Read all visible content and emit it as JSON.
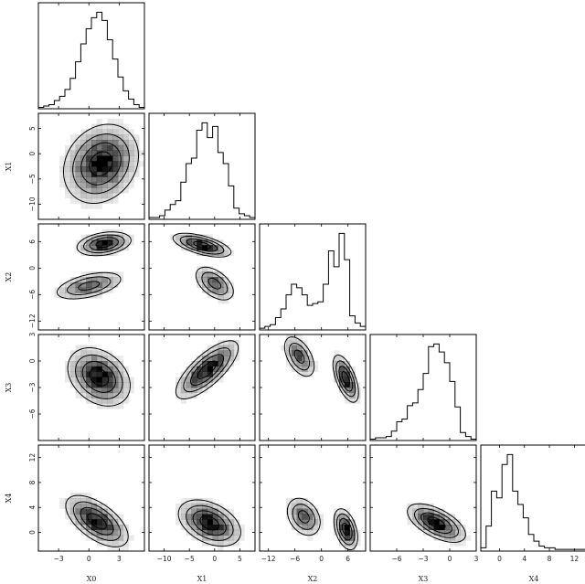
{
  "chart_data": {
    "type": "heatmap",
    "kind": "corner-plot",
    "parameters": [
      "X0",
      "X1",
      "X2",
      "X3",
      "X4"
    ],
    "ranges": {
      "X0": [
        -5,
        5.5
      ],
      "X1": [
        -13,
        8
      ],
      "X2": [
        -14,
        10
      ],
      "X3": [
        -9,
        3
      ],
      "X4": [
        -3,
        14
      ]
    },
    "ticks": {
      "X0": [
        -3,
        0,
        3
      ],
      "X1": [
        -10,
        -5,
        0,
        5
      ],
      "X2": [
        -12,
        -6,
        0,
        6
      ],
      "X3": [
        -6,
        -3,
        0,
        3
      ],
      "X4": [
        0,
        4,
        8,
        12
      ]
    },
    "grid": false,
    "histograms": {
      "X0": [
        1,
        2,
        3,
        6,
        9,
        14,
        22,
        34,
        47,
        58,
        66,
        70,
        64,
        50,
        36,
        23,
        13,
        7,
        3,
        1
      ],
      "X1": [
        1,
        1,
        2,
        5,
        8,
        10,
        20,
        30,
        33,
        48,
        52,
        44,
        50,
        36,
        30,
        18,
        6,
        3,
        2,
        1
      ],
      "X2": [
        1,
        2,
        3,
        7,
        12,
        20,
        26,
        24,
        20,
        14,
        15,
        16,
        26,
        45,
        36,
        55,
        40,
        8,
        4,
        2
      ],
      "X3": [
        1,
        2,
        2,
        3,
        7,
        14,
        16,
        26,
        28,
        38,
        50,
        70,
        72,
        66,
        58,
        44,
        25,
        6,
        3,
        1
      ],
      "X4": [
        2,
        15,
        36,
        32,
        52,
        58,
        36,
        28,
        20,
        10,
        6,
        3,
        2,
        2,
        1,
        1,
        1,
        1,
        1,
        1
      ]
    },
    "pairs": [
      {
        "x": "X0",
        "y": "X1",
        "modes": [
          {
            "mx": 1.2,
            "my": -2.0,
            "sx": 1.8,
            "sy": 3.8,
            "rho": 0.2,
            "w": 1
          }
        ]
      },
      {
        "x": "X0",
        "y": "X2",
        "modes": [
          {
            "mx": 1.5,
            "my": 5.5,
            "sx": 1.3,
            "sy": 1.3,
            "rho": 0.3,
            "w": 0.6
          },
          {
            "mx": 0.0,
            "my": -4.0,
            "sx": 1.7,
            "sy": 1.6,
            "rho": 0.5,
            "w": 0.4
          }
        ]
      },
      {
        "x": "X0",
        "y": "X3",
        "modes": [
          {
            "mx": 1.0,
            "my": -1.8,
            "sx": 1.5,
            "sy": 1.6,
            "rho": -0.3,
            "w": 1
          }
        ]
      },
      {
        "x": "X0",
        "y": "X4",
        "modes": [
          {
            "mx": 0.8,
            "my": 1.8,
            "sx": 1.5,
            "sy": 2.0,
            "rho": -0.6,
            "w": 1
          }
        ]
      },
      {
        "x": "X1",
        "y": "X2",
        "modes": [
          {
            "mx": -2.5,
            "my": 5.2,
            "sx": 2.8,
            "sy": 1.3,
            "rho": -0.6,
            "w": 0.6
          },
          {
            "mx": 0.0,
            "my": -3.5,
            "sx": 2.0,
            "sy": 2.0,
            "rho": -0.5,
            "w": 0.4
          }
        ]
      },
      {
        "x": "X1",
        "y": "X3",
        "modes": [
          {
            "mx": -1.5,
            "my": -1.0,
            "sx": 3.0,
            "sy": 1.6,
            "rho": 0.75,
            "w": 1
          }
        ]
      },
      {
        "x": "X1",
        "y": "X4",
        "modes": [
          {
            "mx": -1.0,
            "my": 1.5,
            "sx": 3.0,
            "sy": 1.8,
            "rho": -0.4,
            "w": 1
          }
        ]
      },
      {
        "x": "X2",
        "y": "X3",
        "modes": [
          {
            "mx": -5.0,
            "my": 0.5,
            "sx": 1.8,
            "sy": 1.2,
            "rho": -0.5,
            "w": 0.4
          },
          {
            "mx": 5.5,
            "my": -2.0,
            "sx": 1.4,
            "sy": 1.3,
            "rho": -0.6,
            "w": 0.6
          }
        ]
      },
      {
        "x": "X2",
        "y": "X4",
        "modes": [
          {
            "mx": -4.0,
            "my": 2.5,
            "sx": 2.0,
            "sy": 1.6,
            "rho": -0.3,
            "w": 0.4
          },
          {
            "mx": 5.5,
            "my": 0.5,
            "sx": 1.3,
            "sy": 1.6,
            "rho": -0.4,
            "w": 0.6
          }
        ]
      },
      {
        "x": "X3",
        "y": "X4",
        "modes": [
          {
            "mx": -1.5,
            "my": 1.5,
            "sx": 1.6,
            "sy": 1.5,
            "rho": -0.6,
            "w": 1
          }
        ]
      }
    ],
    "contour_levels": [
      0.12,
      0.3,
      0.55,
      0.82
    ],
    "colors": {
      "frame": "#000000",
      "line": "#000000",
      "density_max": "#000000",
      "background": "#ffffff"
    }
  }
}
